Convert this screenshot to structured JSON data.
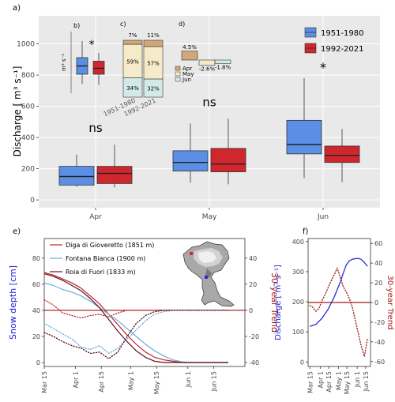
{
  "panel_labels": {
    "a": "a)",
    "b": "b)",
    "c": "c)",
    "d": "d)",
    "e": "e)",
    "f": "f)"
  },
  "colors": {
    "blue": "#5b8fe6",
    "red": "#d0262e",
    "panel_bg": "#e9e9e9",
    "apr": "#d2a679",
    "may": "#f6ebc8",
    "jun": "#d3eaea",
    "fontana": "#6aaed6",
    "diga": "#c0262c",
    "roia": "#5a1020"
  },
  "chart_data": [
    {
      "id": "a",
      "type": "box",
      "ylabel": "Discharge [ m³ s⁻¹]",
      "ylim": [
        -50,
        1180
      ],
      "yticks": [
        0,
        200,
        400,
        600,
        800,
        1000
      ],
      "categories": [
        "Apr",
        "May",
        "Jun"
      ],
      "legend": [
        "1951-1980",
        "1992-2021"
      ],
      "significance": [
        "ns",
        "ns",
        "*"
      ],
      "series": [
        {
          "name": "1951-1980",
          "boxes": [
            {
              "min": 85,
              "q1": 95,
              "median": 150,
              "q3": 215,
              "max": 290
            },
            {
              "min": 110,
              "q1": 185,
              "median": 240,
              "q3": 315,
              "max": 490
            },
            {
              "min": 140,
              "q1": 295,
              "median": 355,
              "q3": 510,
              "max": 780
            }
          ]
        },
        {
          "name": "1992-2021",
          "boxes": [
            {
              "min": 80,
              "q1": 105,
              "median": 170,
              "q3": 215,
              "max": 355
            },
            {
              "min": 100,
              "q1": 180,
              "median": 230,
              "q3": 330,
              "max": 520
            },
            {
              "min": 115,
              "q1": 240,
              "median": 285,
              "q3": 345,
              "max": 455
            }
          ]
        }
      ]
    },
    {
      "id": "b",
      "type": "box",
      "ylabel": "m³ s⁻¹",
      "significance": "*",
      "series": [
        {
          "name": "1951-1980",
          "min": 200,
          "q1": 240,
          "median": 275,
          "q3": 310,
          "max": 380
        },
        {
          "name": "1992-2021",
          "min": 195,
          "q1": 240,
          "median": 265,
          "q3": 295,
          "max": 330
        }
      ]
    },
    {
      "id": "c",
      "type": "bar",
      "stacked": true,
      "categories": [
        "1951-1980",
        "1992-2021"
      ],
      "top_labels": [
        "7%",
        "11%"
      ],
      "series": [
        {
          "name": "Jun",
          "values": [
            34,
            32
          ],
          "labels": [
            "34%",
            "32%"
          ]
        },
        {
          "name": "May",
          "values": [
            59,
            57
          ],
          "labels": [
            "59%",
            "57%"
          ]
        },
        {
          "name": "Apr",
          "values": [
            7,
            11
          ]
        }
      ]
    },
    {
      "id": "d",
      "type": "bar",
      "categories": [
        "Apr",
        "May",
        "Jun"
      ],
      "values": [
        4.5,
        -2.6,
        -1.8
      ],
      "labels": [
        "4.5%",
        "-2.6%",
        "-1.8%"
      ],
      "legend": [
        "Apr",
        "May",
        "Jun"
      ]
    },
    {
      "id": "e",
      "type": "line",
      "ylabel": "Snow depth [cm]",
      "y2label": "30-year Trend",
      "ylim": [
        -3,
        95
      ],
      "yticks": [
        0,
        20,
        40,
        60,
        80
      ],
      "y2lim": [
        -43,
        55
      ],
      "y2ticks": [
        -40,
        -20,
        0,
        20,
        40
      ],
      "xlim": [
        0,
        109
      ],
      "xticks": [
        {
          "label": "Mar 15",
          "x": 0
        },
        {
          "label": "Apr 1",
          "x": 17
        },
        {
          "label": "Apr 15",
          "x": 31
        },
        {
          "label": "May 1",
          "x": 47
        },
        {
          "label": "May 15",
          "x": 61
        },
        {
          "label": "Jun 1",
          "x": 78
        },
        {
          "label": "Jun 15",
          "x": 92
        }
      ],
      "series": [
        {
          "name": "Diga di Gioveretto (1851 m)",
          "color": "#c0262c",
          "x": [
            0,
            5,
            10,
            15,
            20,
            25,
            30,
            35,
            40,
            45,
            50,
            55,
            60,
            65,
            70,
            75,
            80,
            85,
            90,
            95,
            100
          ],
          "y": [
            69,
            67,
            64,
            61,
            57,
            51,
            45,
            37,
            29,
            21,
            14,
            8,
            4,
            2,
            1,
            0,
            0,
            0,
            0,
            0,
            0
          ],
          "trend": [
            8,
            4,
            -2,
            -4,
            -6,
            -4,
            -3,
            -5,
            -2,
            0,
            0,
            0,
            0,
            0,
            0,
            0,
            0,
            0,
            0,
            0,
            0
          ]
        },
        {
          "name": "Fontana Bianca (1900 m)",
          "color": "#6aaed6",
          "x": [
            0,
            5,
            10,
            15,
            20,
            25,
            30,
            35,
            40,
            45,
            50,
            55,
            60,
            65,
            70,
            75,
            80,
            85,
            90,
            95,
            100
          ],
          "y": [
            61,
            59,
            56,
            54,
            51,
            47,
            42,
            37,
            32,
            26,
            20,
            14,
            9,
            5,
            2,
            0.5,
            0,
            0,
            0,
            0,
            0
          ],
          "trend": [
            -10,
            -14,
            -18,
            -22,
            -28,
            -30,
            -27,
            -33,
            -29,
            -22,
            -15,
            -8,
            -3,
            -1,
            0,
            0,
            0,
            0,
            0,
            0,
            0
          ]
        },
        {
          "name": "Roia di Fuori (1833 m)",
          "color": "#5a1020",
          "x": [
            0,
            5,
            10,
            15,
            20,
            25,
            30,
            35,
            40,
            45,
            50,
            55,
            60,
            65,
            70,
            75,
            80,
            85,
            90,
            95,
            100
          ],
          "y": [
            68,
            66,
            63,
            59,
            55,
            49,
            42,
            33,
            24,
            16,
            9,
            4,
            1,
            0,
            0,
            0,
            0,
            0,
            0,
            0,
            0
          ],
          "trend": [
            -17,
            -20,
            -24,
            -27,
            -29,
            -33,
            -32,
            -37,
            -32,
            -20,
            -10,
            -4,
            -1,
            0,
            0,
            0,
            0,
            0,
            0,
            0,
            0
          ]
        }
      ]
    },
    {
      "id": "f",
      "type": "line",
      "ylabel": "Discharge [ m³ s⁻¹]",
      "y2label": "30-year Trend",
      "ylim": [
        -15,
        410
      ],
      "yticks": [
        0,
        100,
        200,
        300,
        400
      ],
      "y2lim": [
        -65,
        65
      ],
      "y2ticks": [
        -60,
        -40,
        -20,
        0,
        20,
        40,
        60
      ],
      "xlim": [
        -3,
        100
      ],
      "xticks": [
        {
          "label": "Mar 15",
          "x": 0
        },
        {
          "label": "Apr 1",
          "x": 17
        },
        {
          "label": "Apr 15",
          "x": 31
        },
        {
          "label": "May 1",
          "x": 47
        },
        {
          "label": "May 15",
          "x": 61
        },
        {
          "label": "Jun 1",
          "x": 78
        },
        {
          "label": "Jun 15",
          "x": 92
        }
      ],
      "series": [
        {
          "name": "Discharge",
          "color": "#2a2ad6",
          "x": [
            0,
            10,
            20,
            30,
            40,
            50,
            55,
            60,
            65,
            70,
            75,
            80,
            85,
            90,
            95
          ],
          "y": [
            118,
            125,
            145,
            175,
            215,
            265,
            295,
            322,
            336,
            341,
            343,
            344,
            340,
            330,
            318
          ]
        },
        {
          "name": "30-year Trend",
          "color": "#a01818",
          "dotted": true,
          "x": [
            0,
            5,
            10,
            15,
            20,
            25,
            30,
            35,
            40,
            45,
            50,
            55,
            60,
            65,
            70,
            75,
            80,
            85,
            90,
            95
          ],
          "y": [
            -3,
            -5,
            -9,
            -6,
            2,
            8,
            15,
            22,
            28,
            35,
            26,
            16,
            11,
            4,
            -5,
            -18,
            -32,
            -45,
            -55,
            -36
          ]
        }
      ]
    }
  ]
}
